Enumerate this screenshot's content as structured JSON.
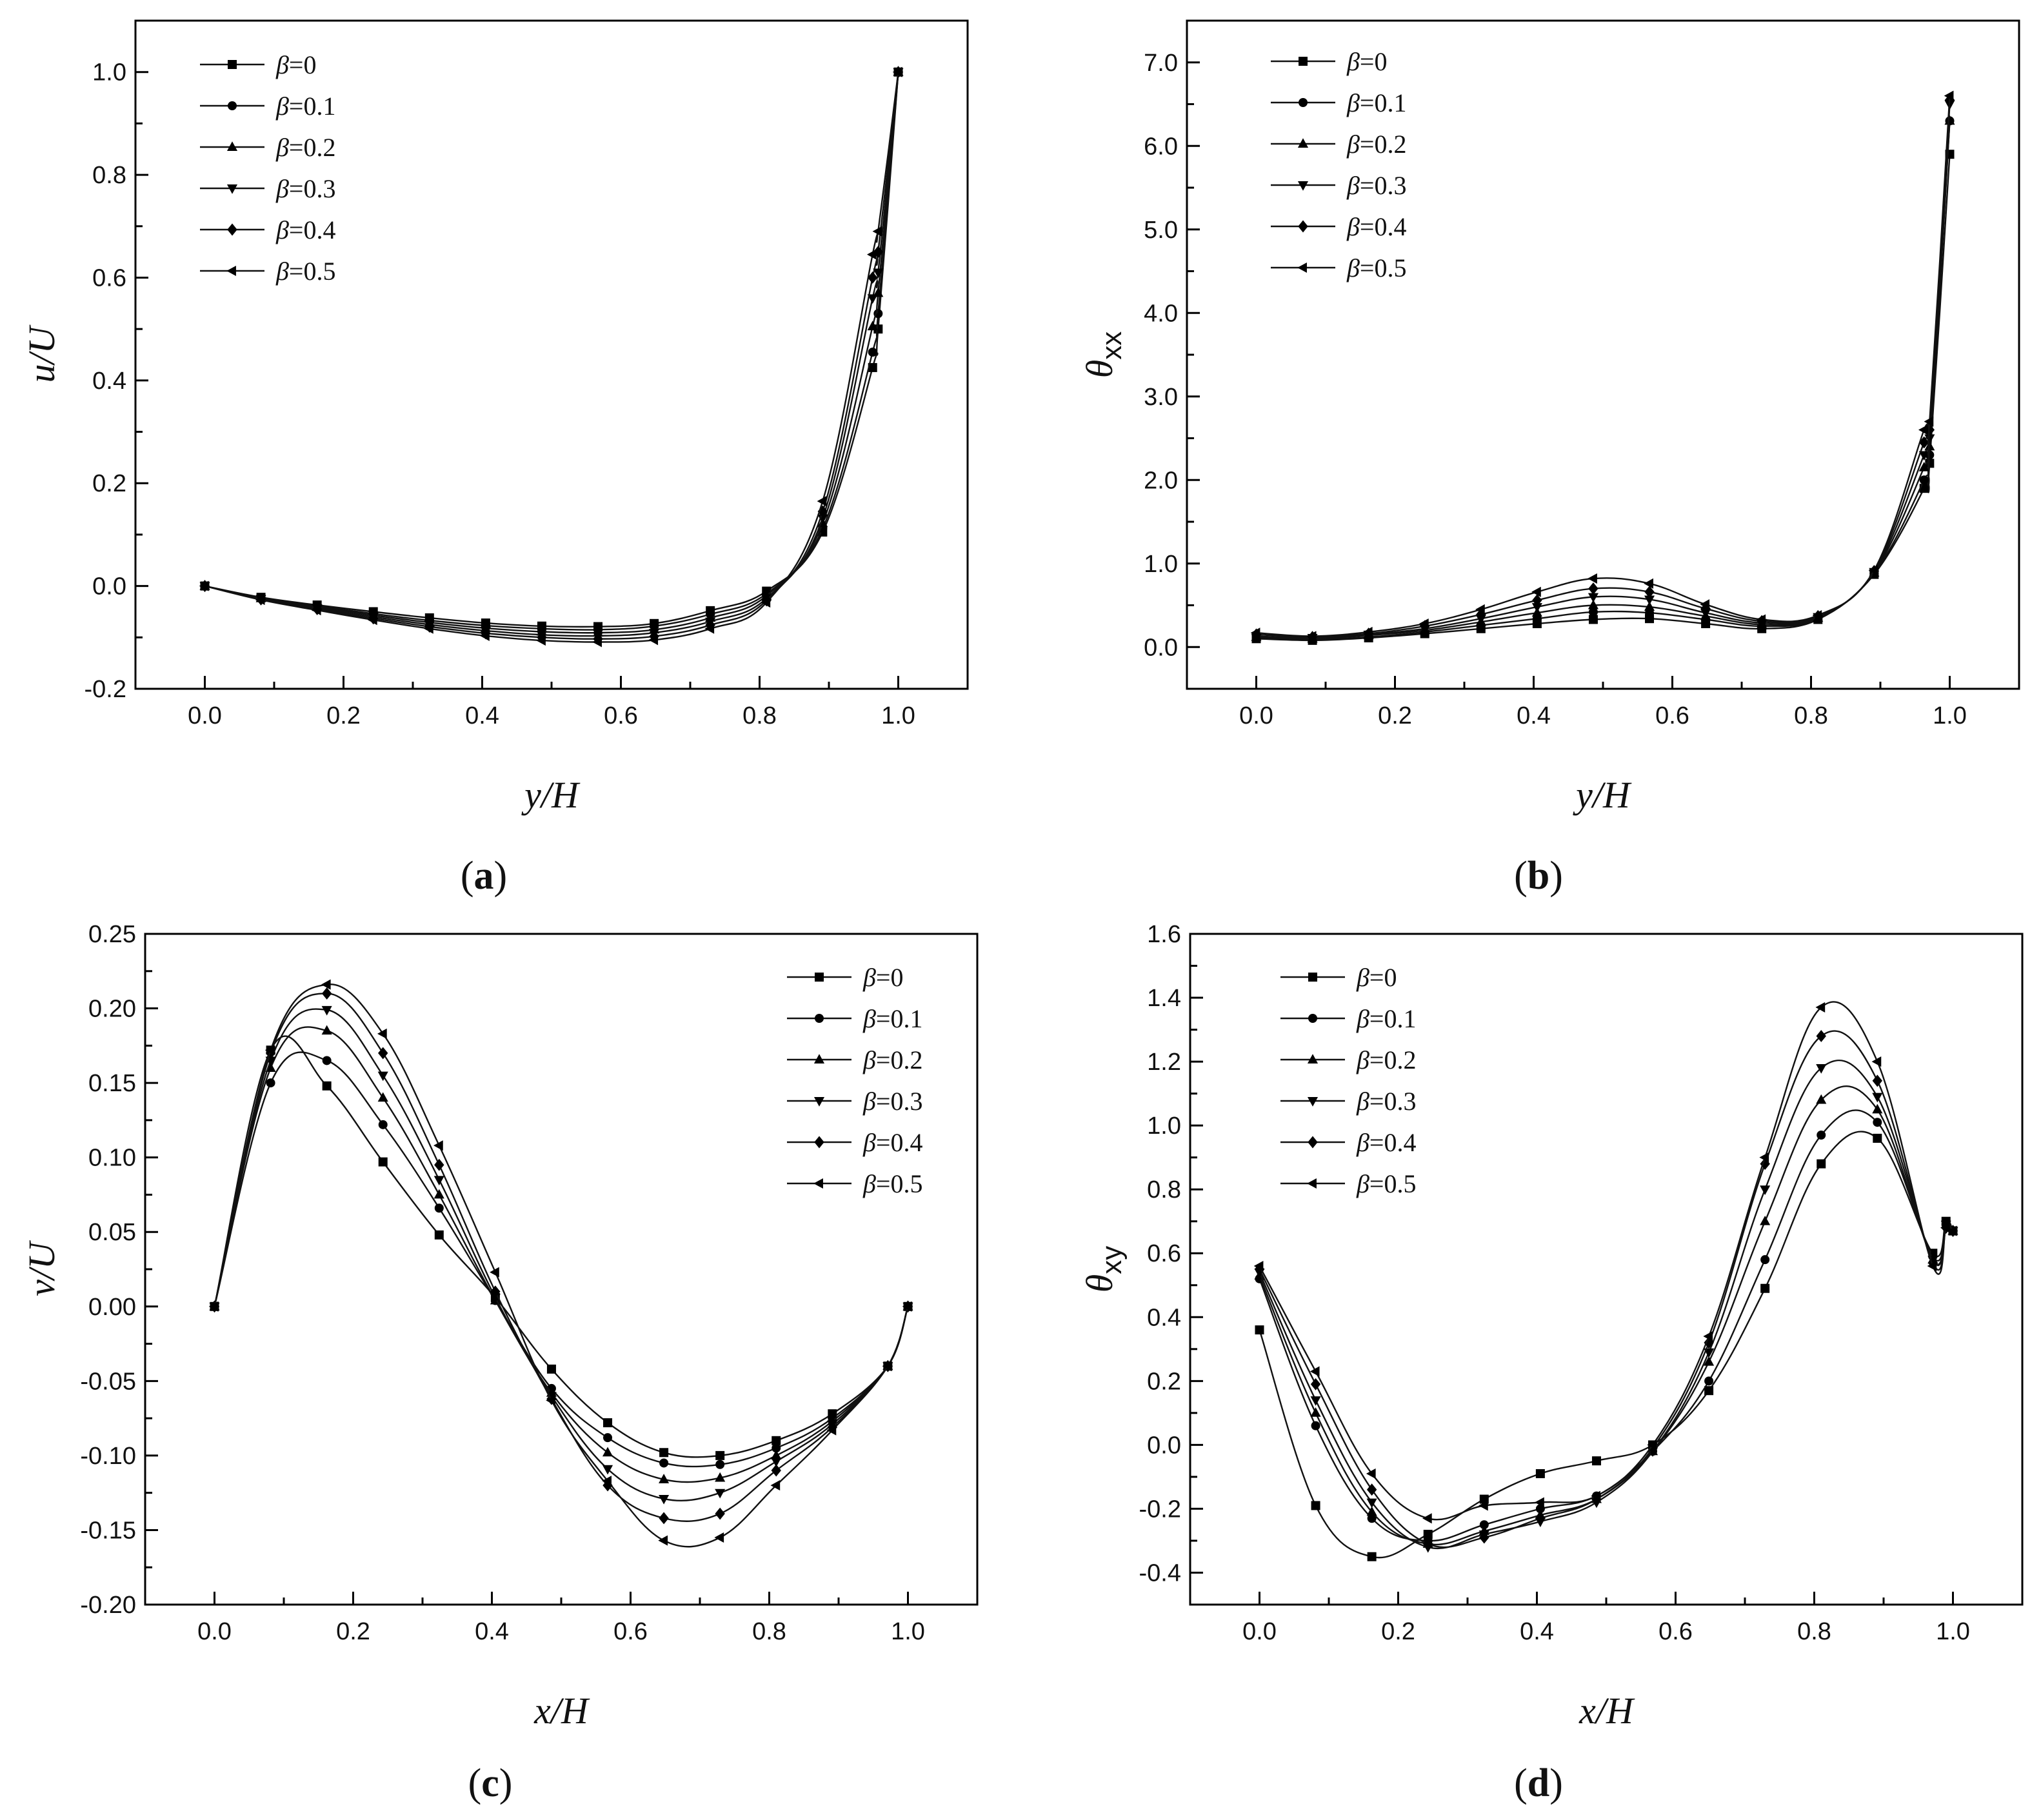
{
  "panel_labels": [
    "(a)",
    "(b)",
    "(c)",
    "(d)"
  ],
  "legend_symbol": "β",
  "chart_data": [
    {
      "type": "line",
      "panel": "(a)",
      "xlabel": "y/H",
      "ylabel": "u/U",
      "xlim": [
        -0.1,
        1.1
      ],
      "ylim": [
        -0.2,
        1.1
      ],
      "xticks": [
        0.0,
        0.2,
        0.4,
        0.6,
        0.8,
        1.0
      ],
      "yticks": [
        -0.2,
        0.0,
        0.2,
        0.4,
        0.6,
        0.8,
        1.0
      ],
      "xtick_labels": [
        "0.0",
        "0.2",
        "0.4",
        "0.6",
        "0.8",
        "1.0"
      ],
      "ytick_labels": [
        "-0.2",
        "0.0",
        "0.2",
        "0.4",
        "0.6",
        "0.8",
        "1.0"
      ],
      "legend_position": "top-left",
      "x": [
        0.0,
        0.081,
        0.162,
        0.243,
        0.324,
        0.405,
        0.486,
        0.567,
        0.648,
        0.729,
        0.81,
        0.891,
        0.963,
        0.971,
        1.0
      ],
      "series": [
        {
          "name": "β=0",
          "marker": "square",
          "values": [
            0.0,
            -0.022,
            -0.037,
            -0.05,
            -0.062,
            -0.072,
            -0.078,
            -0.079,
            -0.073,
            -0.048,
            -0.01,
            0.105,
            0.425,
            0.5,
            1.0
          ]
        },
        {
          "name": "β=0.1",
          "marker": "circle",
          "values": [
            0.0,
            -0.023,
            -0.039,
            -0.054,
            -0.067,
            -0.077,
            -0.083,
            -0.085,
            -0.078,
            -0.055,
            -0.015,
            0.112,
            0.455,
            0.53,
            1.0
          ]
        },
        {
          "name": "β=0.2",
          "marker": "triangle-up",
          "values": [
            0.0,
            -0.024,
            -0.041,
            -0.057,
            -0.071,
            -0.082,
            -0.089,
            -0.091,
            -0.085,
            -0.062,
            -0.019,
            0.122,
            0.505,
            0.57,
            1.0
          ]
        },
        {
          "name": "β=0.3",
          "marker": "triangle-down",
          "values": [
            0.0,
            -0.025,
            -0.043,
            -0.06,
            -0.075,
            -0.087,
            -0.095,
            -0.097,
            -0.091,
            -0.069,
            -0.024,
            0.132,
            0.56,
            0.61,
            1.0
          ]
        },
        {
          "name": "β=0.4",
          "marker": "diamond",
          "values": [
            0.0,
            -0.026,
            -0.045,
            -0.063,
            -0.079,
            -0.092,
            -0.1,
            -0.103,
            -0.098,
            -0.076,
            -0.028,
            0.145,
            0.6,
            0.65,
            1.0
          ]
        },
        {
          "name": "β=0.5",
          "marker": "triangle-left",
          "values": [
            0.0,
            -0.027,
            -0.047,
            -0.066,
            -0.083,
            -0.097,
            -0.106,
            -0.109,
            -0.105,
            -0.083,
            -0.032,
            0.165,
            0.645,
            0.69,
            1.0
          ]
        }
      ]
    },
    {
      "type": "line",
      "panel": "(b)",
      "xlabel": "y/H",
      "ylabel": "θxx",
      "xlim": [
        -0.1,
        1.1
      ],
      "ylim": [
        -0.5,
        7.5
      ],
      "xticks": [
        0.0,
        0.2,
        0.4,
        0.6,
        0.8,
        1.0
      ],
      "yticks": [
        0.0,
        1.0,
        2.0,
        3.0,
        4.0,
        5.0,
        6.0,
        7.0
      ],
      "xtick_labels": [
        "0.0",
        "0.2",
        "0.4",
        "0.6",
        "0.8",
        "1.0"
      ],
      "ytick_labels": [
        "0.0",
        "1.0",
        "2.0",
        "3.0",
        "4.0",
        "5.0",
        "6.0",
        "7.0"
      ],
      "legend_position": "top-left",
      "x": [
        0.0,
        0.081,
        0.162,
        0.243,
        0.324,
        0.405,
        0.486,
        0.567,
        0.648,
        0.729,
        0.81,
        0.891,
        0.963,
        0.971,
        1.0
      ],
      "series": [
        {
          "name": "β=0",
          "marker": "square",
          "values": [
            0.1,
            0.08,
            0.11,
            0.16,
            0.22,
            0.28,
            0.33,
            0.34,
            0.28,
            0.22,
            0.33,
            0.87,
            1.9,
            2.2,
            5.9
          ]
        },
        {
          "name": "β=0.1",
          "marker": "circle",
          "values": [
            0.11,
            0.09,
            0.12,
            0.18,
            0.26,
            0.34,
            0.42,
            0.41,
            0.33,
            0.25,
            0.34,
            0.88,
            2.0,
            2.3,
            6.3
          ]
        },
        {
          "name": "β=0.2",
          "marker": "triangle-up",
          "values": [
            0.12,
            0.1,
            0.14,
            0.2,
            0.3,
            0.41,
            0.5,
            0.48,
            0.37,
            0.27,
            0.35,
            0.89,
            2.15,
            2.4,
            6.3
          ]
        },
        {
          "name": "β=0.3",
          "marker": "triangle-down",
          "values": [
            0.13,
            0.11,
            0.15,
            0.22,
            0.34,
            0.48,
            0.6,
            0.57,
            0.41,
            0.29,
            0.36,
            0.9,
            2.3,
            2.5,
            6.5
          ]
        },
        {
          "name": "β=0.4",
          "marker": "diamond",
          "values": [
            0.15,
            0.12,
            0.16,
            0.25,
            0.39,
            0.56,
            0.7,
            0.66,
            0.46,
            0.31,
            0.37,
            0.91,
            2.45,
            2.6,
            6.55
          ]
        },
        {
          "name": "β=0.5",
          "marker": "triangle-left",
          "values": [
            0.17,
            0.13,
            0.18,
            0.28,
            0.45,
            0.66,
            0.82,
            0.76,
            0.51,
            0.33,
            0.38,
            0.92,
            2.6,
            2.7,
            6.6
          ]
        }
      ]
    },
    {
      "type": "line",
      "panel": "(c)",
      "xlabel": "x/H",
      "ylabel": "v/U",
      "xlim": [
        -0.1,
        1.1
      ],
      "ylim": [
        -0.2,
        0.25
      ],
      "xticks": [
        0.0,
        0.2,
        0.4,
        0.6,
        0.8,
        1.0
      ],
      "yticks": [
        -0.2,
        -0.15,
        -0.1,
        -0.05,
        0.0,
        0.05,
        0.1,
        0.15,
        0.2,
        0.25
      ],
      "xtick_labels": [
        "0.0",
        "0.2",
        "0.4",
        "0.6",
        "0.8",
        "1.0"
      ],
      "ytick_labels": [
        "-0.20",
        "-0.15",
        "-0.10",
        "-0.05",
        "0.00",
        "0.05",
        "0.10",
        "0.15",
        "0.20",
        "0.25"
      ],
      "legend_position": "top-right",
      "x": [
        0.0,
        0.081,
        0.162,
        0.243,
        0.324,
        0.405,
        0.486,
        0.567,
        0.648,
        0.729,
        0.81,
        0.891,
        0.971,
        1.0
      ],
      "series": [
        {
          "name": "β=0",
          "marker": "square",
          "values": [
            0.0,
            0.172,
            0.148,
            0.097,
            0.048,
            0.006,
            -0.042,
            -0.078,
            -0.098,
            -0.1,
            -0.09,
            -0.072,
            -0.04,
            0.0
          ]
        },
        {
          "name": "β=0.1",
          "marker": "circle",
          "values": [
            0.0,
            0.15,
            0.165,
            0.122,
            0.066,
            0.004,
            -0.055,
            -0.088,
            -0.105,
            -0.106,
            -0.095,
            -0.075,
            -0.04,
            0.0
          ]
        },
        {
          "name": "β=0.2",
          "marker": "triangle-up",
          "values": [
            0.0,
            0.16,
            0.185,
            0.14,
            0.075,
            0.004,
            -0.058,
            -0.098,
            -0.116,
            -0.115,
            -0.1,
            -0.077,
            -0.04,
            0.0
          ]
        },
        {
          "name": "β=0.3",
          "marker": "triangle-down",
          "values": [
            0.0,
            0.165,
            0.199,
            0.155,
            0.085,
            0.006,
            -0.06,
            -0.109,
            -0.129,
            -0.125,
            -0.104,
            -0.079,
            -0.04,
            0.0
          ]
        },
        {
          "name": "β=0.4",
          "marker": "diamond",
          "values": [
            0.0,
            0.17,
            0.21,
            0.17,
            0.095,
            0.01,
            -0.062,
            -0.12,
            -0.142,
            -0.139,
            -0.11,
            -0.081,
            -0.04,
            0.0
          ]
        },
        {
          "name": "β=0.5",
          "marker": "triangle-left",
          "values": [
            0.0,
            0.172,
            0.216,
            0.183,
            0.108,
            0.023,
            -0.063,
            -0.117,
            -0.157,
            -0.155,
            -0.12,
            -0.083,
            -0.04,
            0.0
          ]
        }
      ]
    },
    {
      "type": "line",
      "panel": "(d)",
      "xlabel": "x/H",
      "ylabel": "θxy",
      "xlim": [
        -0.1,
        1.1
      ],
      "ylim": [
        -0.5,
        1.6
      ],
      "xticks": [
        0.0,
        0.2,
        0.4,
        0.6,
        0.8,
        1.0
      ],
      "yticks": [
        -0.4,
        -0.2,
        0.0,
        0.2,
        0.4,
        0.6,
        0.8,
        1.0,
        1.2,
        1.4,
        1.6
      ],
      "xtick_labels": [
        "0.0",
        "0.2",
        "0.4",
        "0.6",
        "0.8",
        "1.0"
      ],
      "ytick_labels": [
        "-0.4",
        "-0.2",
        "0.0",
        "0.2",
        "0.4",
        "0.6",
        "0.8",
        "1.0",
        "1.2",
        "1.4",
        "1.6"
      ],
      "legend_position": "top-left",
      "x": [
        0.0,
        0.081,
        0.162,
        0.243,
        0.324,
        0.405,
        0.486,
        0.567,
        0.648,
        0.729,
        0.81,
        0.891,
        0.971,
        0.99,
        1.0
      ],
      "series": [
        {
          "name": "β=0",
          "marker": "square",
          "values": [
            0.36,
            -0.19,
            -0.35,
            -0.28,
            -0.17,
            -0.09,
            -0.05,
            0.0,
            0.17,
            0.49,
            0.88,
            0.96,
            0.6,
            0.7,
            0.67
          ]
        },
        {
          "name": "β=0.1",
          "marker": "circle",
          "values": [
            0.52,
            0.06,
            -0.23,
            -0.3,
            -0.25,
            -0.2,
            -0.16,
            -0.02,
            0.2,
            0.58,
            0.97,
            1.01,
            0.59,
            0.69,
            0.67
          ]
        },
        {
          "name": "β=0.2",
          "marker": "triangle-up",
          "values": [
            0.53,
            0.1,
            -0.21,
            -0.31,
            -0.27,
            -0.22,
            -0.17,
            -0.02,
            0.26,
            0.7,
            1.08,
            1.05,
            0.58,
            0.69,
            0.67
          ]
        },
        {
          "name": "β=0.3",
          "marker": "triangle-down",
          "values": [
            0.54,
            0.14,
            -0.18,
            -0.32,
            -0.28,
            -0.24,
            -0.18,
            -0.02,
            0.29,
            0.8,
            1.18,
            1.09,
            0.58,
            0.69,
            0.67
          ]
        },
        {
          "name": "β=0.4",
          "marker": "diamond",
          "values": [
            0.55,
            0.19,
            -0.14,
            -0.31,
            -0.29,
            -0.23,
            -0.17,
            -0.01,
            0.32,
            0.88,
            1.28,
            1.14,
            0.57,
            0.68,
            0.67
          ]
        },
        {
          "name": "β=0.5",
          "marker": "triangle-left",
          "values": [
            0.56,
            0.23,
            -0.09,
            -0.23,
            -0.19,
            -0.18,
            -0.16,
            0.0,
            0.34,
            0.9,
            1.37,
            1.2,
            0.56,
            0.68,
            0.67
          ]
        }
      ]
    }
  ]
}
